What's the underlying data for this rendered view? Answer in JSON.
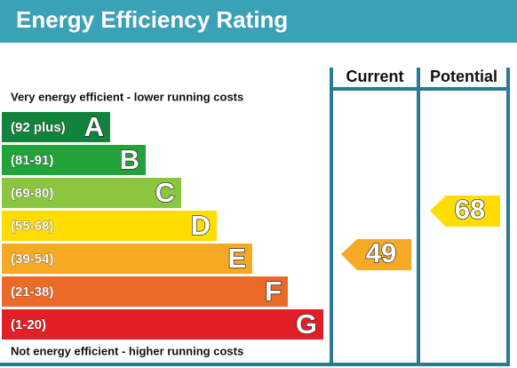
{
  "title": "Energy Efficiency Rating",
  "columns": [
    "Current",
    "Potential"
  ],
  "top_note": "Very energy efficient - lower running costs",
  "bottom_note": "Not energy efficient - higher running costs",
  "bands": [
    {
      "range": "(92 plus)",
      "letter": "A",
      "color": "#12833c"
    },
    {
      "range": "(81-91)",
      "letter": "B",
      "color": "#22a33a"
    },
    {
      "range": "(69-80)",
      "letter": "C",
      "color": "#8cc63f"
    },
    {
      "range": "(55-68)",
      "letter": "D",
      "color": "#ffdd00"
    },
    {
      "range": "(39-54)",
      "letter": "E",
      "color": "#f6a925"
    },
    {
      "range": "(21-38)",
      "letter": "F",
      "color": "#ec6a27"
    },
    {
      "range": "(1-20)",
      "letter": "G",
      "color": "#e21f26"
    }
  ],
  "current": 49,
  "potential": 68
}
